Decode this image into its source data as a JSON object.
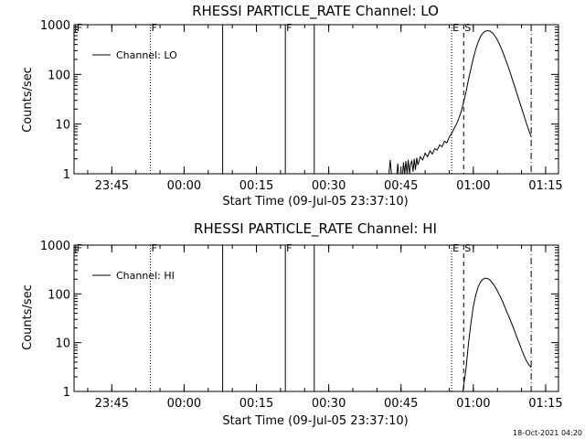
{
  "footer_text": "18-Oct-2021 04:20",
  "chart_data": [
    {
      "type": "line",
      "title": "RHESSI PARTICLE_RATE Channel: LO",
      "xlabel": "Start Time (09-Jul-05 23:37:10)",
      "ylabel": "Counts/sec",
      "yscale": "log",
      "ylim": [
        1,
        1000
      ],
      "xlim": [
        "23:37:10",
        "01:17:40"
      ],
      "x_ticks": [
        "23:45",
        "00:00",
        "00:15",
        "00:30",
        "00:45",
        "01:00",
        "01:15"
      ],
      "y_ticks": [
        "1",
        "10",
        "100",
        "1000"
      ],
      "legend": {
        "placement": "top-left",
        "entries": [
          "Channel: LO"
        ]
      },
      "markers": [
        {
          "time": "23:37:30",
          "style": "tick",
          "label": "F"
        },
        {
          "time": "23:53:00",
          "style": "dotted",
          "label": "F"
        },
        {
          "time": "00:08:00",
          "style": "solid",
          "label": ""
        },
        {
          "time": "00:21:00",
          "style": "solid",
          "label": "F"
        },
        {
          "time": "00:27:00",
          "style": "solid",
          "label": ""
        },
        {
          "time": "00:55:30",
          "style": "dotted",
          "label": "E"
        },
        {
          "time": "00:58:00",
          "style": "dashed",
          "label": "S"
        },
        {
          "time": "01:12:00",
          "style": "dashdot",
          "label": ""
        }
      ],
      "series": [
        {
          "name": "Channel: LO",
          "segments": [
            [
              [
                "00:42:30",
                1
              ],
              [
                "00:42:45",
                1.9
              ],
              [
                "00:43:00",
                1
              ]
            ],
            [
              [
                "00:44:10",
                1
              ],
              [
                "00:44:20",
                1.6
              ],
              [
                "00:44:30",
                1
              ]
            ],
            [
              [
                "00:45:20",
                1
              ],
              [
                "00:45:30",
                1.7
              ],
              [
                "00:45:45",
                1
              ],
              [
                "00:46:00",
                1.8
              ],
              [
                "00:46:15",
                1
              ],
              [
                "00:46:30",
                1.9
              ],
              [
                "00:46:45",
                1
              ],
              [
                "00:47:00",
                1.6
              ],
              [
                "00:47:15",
                1.8
              ],
              [
                "00:47:30",
                1.1
              ],
              [
                "00:47:45",
                2.0
              ],
              [
                "00:48:00",
                1.2
              ],
              [
                "00:48:15",
                2.1
              ],
              [
                "00:48:30",
                1.5
              ],
              [
                "00:49:00",
                2.2
              ],
              [
                "00:49:30",
                1.9
              ],
              [
                "00:50:00",
                2.6
              ],
              [
                "00:50:30",
                2.2
              ],
              [
                "00:51:00",
                2.9
              ],
              [
                "00:51:30",
                2.5
              ],
              [
                "00:52:00",
                3.2
              ],
              [
                "00:52:30",
                3.0
              ],
              [
                "00:53:00",
                3.8
              ],
              [
                "00:53:30",
                3.5
              ],
              [
                "00:54:00",
                4.5
              ],
              [
                "00:54:30",
                4.2
              ],
              [
                "00:55:00",
                5.5
              ],
              [
                "00:55:30",
                6.5
              ],
              [
                "00:56:00",
                8
              ],
              [
                "00:56:30",
                10
              ],
              [
                "00:57:00",
                13
              ],
              [
                "00:57:30",
                18
              ],
              [
                "00:58:00",
                28
              ],
              [
                "00:58:30",
                45
              ],
              [
                "00:59:00",
                80
              ],
              [
                "00:59:30",
                130
              ],
              [
                "01:00:00",
                210
              ],
              [
                "01:00:30",
                320
              ],
              [
                "01:01:00",
                450
              ],
              [
                "01:01:30",
                580
              ],
              [
                "01:02:00",
                680
              ],
              [
                "01:02:30",
                740
              ],
              [
                "01:03:00",
                760
              ],
              [
                "01:03:30",
                740
              ],
              [
                "01:04:00",
                680
              ],
              [
                "01:04:30",
                590
              ],
              [
                "01:05:00",
                490
              ],
              [
                "01:05:30",
                390
              ],
              [
                "01:06:00",
                300
              ],
              [
                "01:06:30",
                225
              ],
              [
                "01:07:00",
                165
              ],
              [
                "01:07:30",
                120
              ],
              [
                "01:08:00",
                85
              ],
              [
                "01:08:30",
                60
              ],
              [
                "01:09:00",
                42
              ],
              [
                "01:09:30",
                30
              ],
              [
                "01:10:00",
                21
              ],
              [
                "01:10:30",
                15
              ],
              [
                "01:11:00",
                10.5
              ],
              [
                "01:11:30",
                7.5
              ],
              [
                "01:12:00",
                5.5
              ]
            ]
          ]
        }
      ]
    },
    {
      "type": "line",
      "title": "RHESSI PARTICLE_RATE Channel: HI",
      "xlabel": "Start Time (09-Jul-05 23:37:10)",
      "ylabel": "Counts/sec",
      "yscale": "log",
      "ylim": [
        1,
        1000
      ],
      "xlim": [
        "23:37:10",
        "01:17:40"
      ],
      "x_ticks": [
        "23:45",
        "00:00",
        "00:15",
        "00:30",
        "00:45",
        "01:00",
        "01:15"
      ],
      "y_ticks": [
        "1",
        "10",
        "100",
        "1000"
      ],
      "legend": {
        "placement": "top-left",
        "entries": [
          "Channel: HI"
        ]
      },
      "markers": [
        {
          "time": "23:37:30",
          "style": "tick",
          "label": "F"
        },
        {
          "time": "23:53:00",
          "style": "dotted",
          "label": "F"
        },
        {
          "time": "00:08:00",
          "style": "solid",
          "label": ""
        },
        {
          "time": "00:21:00",
          "style": "solid",
          "label": "F"
        },
        {
          "time": "00:27:00",
          "style": "solid",
          "label": ""
        },
        {
          "time": "00:55:30",
          "style": "dotted",
          "label": "E"
        },
        {
          "time": "00:58:00",
          "style": "dashed",
          "label": "S"
        },
        {
          "time": "01:12:00",
          "style": "dashdot",
          "label": ""
        }
      ],
      "series": [
        {
          "name": "Channel: HI",
          "segments": [
            [
              [
                "00:57:50",
                1
              ],
              [
                "00:58:30",
                3
              ],
              [
                "00:59:00",
                10
              ],
              [
                "00:59:30",
                25
              ],
              [
                "01:00:00",
                55
              ],
              [
                "01:00:30",
                95
              ],
              [
                "01:01:00",
                140
              ],
              [
                "01:01:30",
                175
              ],
              [
                "01:02:00",
                200
              ],
              [
                "01:02:30",
                210
              ],
              [
                "01:03:00",
                205
              ],
              [
                "01:03:30",
                190
              ],
              [
                "01:04:00",
                165
              ],
              [
                "01:04:30",
                140
              ],
              [
                "01:05:00",
                115
              ],
              [
                "01:05:30",
                92
              ],
              [
                "01:06:00",
                72
              ],
              [
                "01:06:30",
                55
              ],
              [
                "01:07:00",
                42
              ],
              [
                "01:07:30",
                32
              ],
              [
                "01:08:00",
                24
              ],
              [
                "01:08:30",
                18
              ],
              [
                "01:09:00",
                13
              ],
              [
                "01:09:30",
                10
              ],
              [
                "01:10:00",
                7.3
              ],
              [
                "01:10:30",
                5.5
              ],
              [
                "01:11:00",
                4.3
              ],
              [
                "01:11:30",
                3.5
              ],
              [
                "01:12:00",
                3.1
              ]
            ]
          ]
        }
      ]
    }
  ]
}
